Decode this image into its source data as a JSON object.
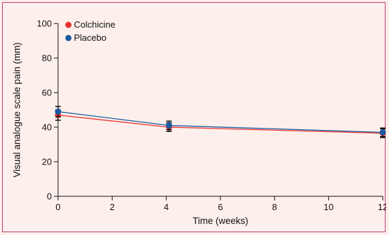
{
  "chart_data": {
    "type": "line",
    "xlabel": "Time (weeks)",
    "ylabel": "Visual analogue scale pain (mm)",
    "xlim": [
      0,
      12
    ],
    "ylim": [
      0,
      100
    ],
    "xticks": [
      0,
      2,
      4,
      6,
      8,
      10,
      12
    ],
    "yticks": [
      0,
      20,
      40,
      60,
      80,
      100
    ],
    "grid": false,
    "legend_position": "top-left",
    "series": [
      {
        "name": "Colchicine",
        "color": "#e8312f",
        "x": [
          0,
          4.1,
          12
        ],
        "y": [
          47,
          40,
          36.5
        ],
        "error": [
          3,
          2.5,
          2.5
        ]
      },
      {
        "name": "Placebo",
        "color": "#1a5aa0",
        "x": [
          0,
          4.1,
          12
        ],
        "y": [
          49,
          41,
          37
        ],
        "error": [
          3,
          2.5,
          2.5
        ]
      }
    ]
  }
}
